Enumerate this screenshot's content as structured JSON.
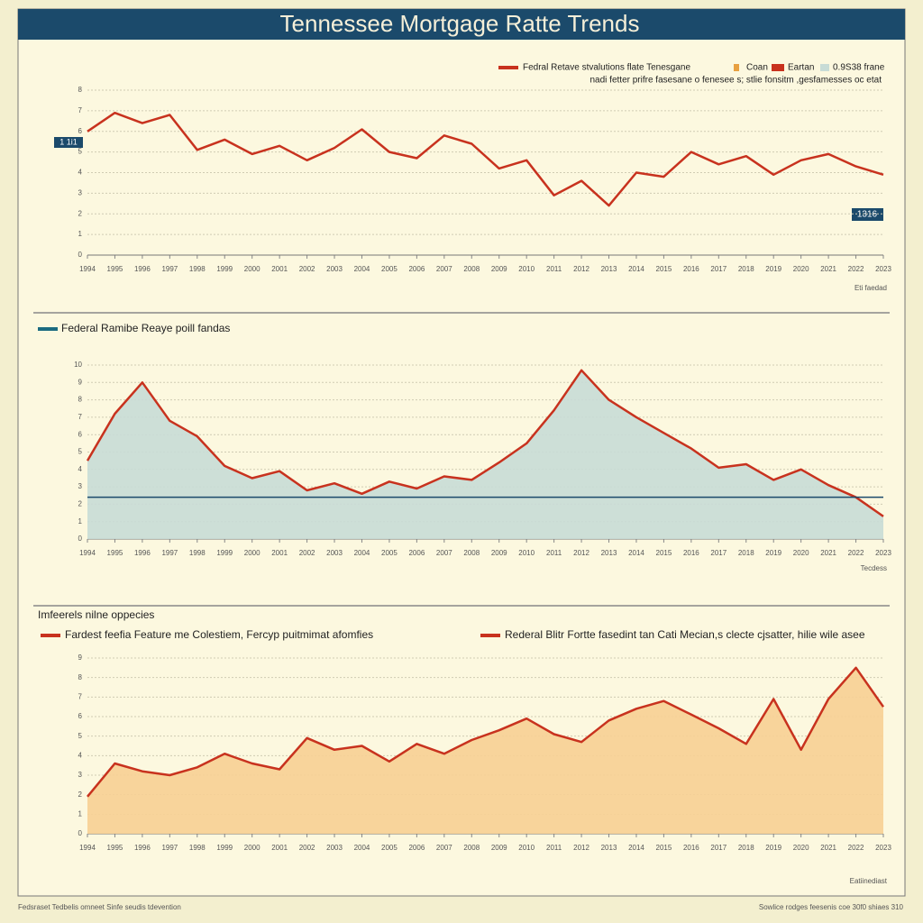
{
  "title": "Tennessee Mortgage Ratte Trends",
  "footer_left": "Fedsraset Tedbelis omneet Sinfe seudis tdevention",
  "footer_right": "Sowlice rodges feesenis coe 30f0 shiaes 310",
  "chart_data": [
    {
      "type": "line",
      "legend_extras": [
        "Coan",
        "Eartan",
        "0.9S38 frane"
      ],
      "subtitle": "nadi fetter prifre fasesane o fenesee s; stlie fonsitm ,gesfamesses oc etat",
      "annotations": [
        "1 1i1",
        "1316"
      ],
      "x_label": "Eti faedad",
      "categories": [
        "1994",
        "1995",
        "1996",
        "1997",
        "1998",
        "1999",
        "2000",
        "2001",
        "2002",
        "2003",
        "2004",
        "2005",
        "2006",
        "2007",
        "2008",
        "2009",
        "2010",
        "2011",
        "2012",
        "2013",
        "2014",
        "2015",
        "2016",
        "2017",
        "2018",
        "2019",
        "2020",
        "2021",
        "2022",
        "2023"
      ],
      "series": [
        {
          "name": "Fedral Retave stvalutions flate Tenesgane",
          "color": "#c8321e",
          "values": [
            6.0,
            6.9,
            6.4,
            6.8,
            5.1,
            5.6,
            4.9,
            5.3,
            4.6,
            5.2,
            6.1,
            5.0,
            4.7,
            5.8,
            5.4,
            4.2,
            4.6,
            2.9,
            3.6,
            2.4,
            4.0,
            3.8,
            5.0,
            4.4,
            4.8,
            3.9,
            4.6,
            4.9,
            4.3,
            3.9
          ]
        }
      ],
      "ylim": [
        0,
        8
      ],
      "yticks": [
        0,
        1,
        2,
        3,
        4,
        5,
        6,
        7,
        8
      ],
      "grid": true
    },
    {
      "type": "area",
      "title": "Federal Ramibe Reaye poill fandas",
      "x_label": "Tecdess",
      "fill": "#c8dcd6",
      "ref_line": 2.4,
      "categories": [
        "1994",
        "1995",
        "1996",
        "1997",
        "1998",
        "1999",
        "2000",
        "2001",
        "2002",
        "2003",
        "2004",
        "2005",
        "2006",
        "2007",
        "2008",
        "2009",
        "2010",
        "2011",
        "2012",
        "2013",
        "2014",
        "2015",
        "2016",
        "2017",
        "2018",
        "2019",
        "2020",
        "2021",
        "2022",
        "2023"
      ],
      "series": [
        {
          "name": "Federal Ramibe Reaye",
          "color": "#c8321e",
          "values": [
            4.5,
            7.2,
            9.0,
            6.8,
            5.9,
            4.2,
            3.5,
            3.9,
            2.8,
            3.2,
            2.6,
            3.3,
            2.9,
            3.6,
            3.4,
            4.4,
            5.5,
            7.4,
            9.7,
            8.0,
            7.0,
            6.1,
            5.2,
            4.1,
            4.3,
            3.4,
            4.0,
            3.1,
            2.4,
            1.3
          ]
        }
      ],
      "ylim": [
        0,
        10
      ],
      "yticks": [
        0,
        1,
        2,
        3,
        4,
        5,
        6,
        7,
        8,
        9,
        10
      ],
      "grid": true
    },
    {
      "type": "area",
      "title": "Imfeerels nilne oppecies",
      "subtitle": "Rederal Blitr Fortte fasedint tan Cati Mecian,s clecte cjsatter, hilie wile asee",
      "x_label": "Eatiinediast",
      "fill": "#f7cf93",
      "categories": [
        "1994",
        "1995",
        "1996",
        "1997",
        "1998",
        "1999",
        "2000",
        "2001",
        "2002",
        "2003",
        "2004",
        "2005",
        "2006",
        "2007",
        "2008",
        "2009",
        "2010",
        "2011",
        "2012",
        "2013",
        "2014",
        "2015",
        "2016",
        "2017",
        "2018",
        "2019",
        "2020",
        "2021",
        "2022",
        "2023"
      ],
      "series": [
        {
          "name": "Fardest feefia Feature me Colestiem, Fercyp puitmimat afomfies",
          "color": "#c8321e",
          "values": [
            1.9,
            3.6,
            3.2,
            3.0,
            3.4,
            4.1,
            3.6,
            3.3,
            4.9,
            4.3,
            4.5,
            3.7,
            4.6,
            4.1,
            4.8,
            5.3,
            5.9,
            5.1,
            4.7,
            5.8,
            6.4,
            6.8,
            6.1,
            5.4,
            4.6,
            6.9,
            4.3,
            6.9,
            8.5,
            6.5
          ]
        }
      ],
      "ylim": [
        0,
        9
      ],
      "yticks": [
        0,
        1,
        2,
        3,
        4,
        5,
        6,
        7,
        8,
        9
      ],
      "grid": true
    }
  ]
}
